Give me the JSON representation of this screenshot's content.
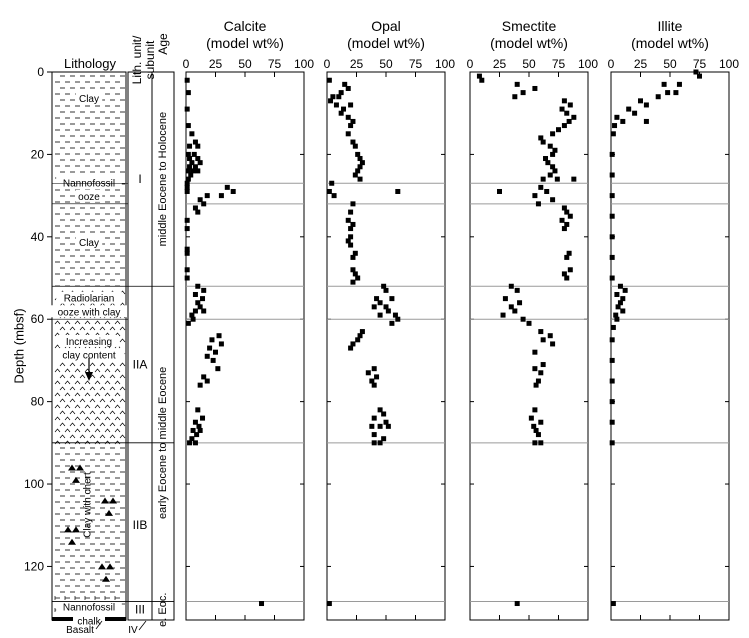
{
  "figure": {
    "depth_axis": {
      "label": "Depth (mbsf)",
      "min": 0,
      "max": 133,
      "ticks": [
        0,
        20,
        40,
        60,
        80,
        100,
        120
      ]
    },
    "column_headers": {
      "lithology": "Lithology",
      "unit": [
        "Lith. unit/",
        "subunit"
      ],
      "age": "Age"
    },
    "lithology_labels": [
      {
        "text": "Clay",
        "depth": 7
      },
      {
        "text": "Nannofossil",
        "depth": 27.5
      },
      {
        "text": "ooze",
        "depth": 30.8
      },
      {
        "text": "Clay",
        "depth": 42
      },
      {
        "text": "Radiolarian",
        "depth": 55.5
      },
      {
        "text": "ooze with clay",
        "depth": 58.8
      },
      {
        "text": "Increasing",
        "depth": 66
      },
      {
        "text": "clay content",
        "depth": 69.3
      },
      {
        "text": "Nannofossil",
        "depth": 130.5
      },
      {
        "text": "chalk",
        "depth": 133.8
      }
    ],
    "lithology_vertical_label": "Clay with chert",
    "bottom_labels": {
      "basalt": "Basalt",
      "unit_iv": "IV"
    },
    "units": [
      {
        "label": "I",
        "depth": 26
      },
      {
        "label": "IIA",
        "depth": 71
      },
      {
        "label": "IIB",
        "depth": 110
      },
      {
        "label": "III",
        "depth": 130.5
      }
    ],
    "ages": [
      {
        "label": "middle Eocene to Holocene",
        "top": 0,
        "bottom": 52
      },
      {
        "label": "early Eocene to middle Eocene",
        "top": 52,
        "bottom": 128
      },
      {
        "label": "e. Eoc.",
        "top": 128,
        "bottom": 133
      }
    ],
    "boundaries": [
      27,
      32,
      52,
      60,
      90,
      128.5
    ]
  },
  "chart_data": {
    "type": "scatter",
    "y_axis": {
      "label": "Depth (mbsf)",
      "range": [
        0,
        133
      ],
      "inverted": true,
      "ticks": [
        0,
        20,
        40,
        60,
        80,
        100,
        120
      ]
    },
    "x_range": [
      0,
      100
    ],
    "x_ticks": [
      0,
      25,
      50,
      75,
      100
    ],
    "panels": [
      {
        "title": "Calcite",
        "subtitle": "(model wt%)",
        "points": [
          [
            1,
            2
          ],
          [
            2,
            5
          ],
          [
            1,
            9
          ],
          [
            2,
            13
          ],
          [
            5,
            15
          ],
          [
            8,
            17
          ],
          [
            3,
            18
          ],
          [
            10,
            18
          ],
          [
            2,
            20
          ],
          [
            7,
            20
          ],
          [
            3,
            21
          ],
          [
            10,
            21
          ],
          [
            5,
            22
          ],
          [
            12,
            22
          ],
          [
            3,
            23
          ],
          [
            8,
            23
          ],
          [
            2,
            24
          ],
          [
            6,
            24
          ],
          [
            10,
            24
          ],
          [
            4,
            25
          ],
          [
            2,
            26
          ],
          [
            1,
            27
          ],
          [
            1,
            28
          ],
          [
            1,
            29
          ],
          [
            35,
            28
          ],
          [
            40,
            29
          ],
          [
            30,
            30
          ],
          [
            18,
            30
          ],
          [
            12,
            31
          ],
          [
            15,
            32
          ],
          [
            8,
            33
          ],
          [
            10,
            34
          ],
          [
            1,
            36
          ],
          [
            1,
            38
          ],
          [
            1,
            43
          ],
          [
            1,
            44
          ],
          [
            1,
            48
          ],
          [
            1,
            50
          ],
          [
            10,
            52
          ],
          [
            15,
            53
          ],
          [
            8,
            54
          ],
          [
            14,
            55
          ],
          [
            10,
            56
          ],
          [
            12,
            57
          ],
          [
            8,
            58
          ],
          [
            15,
            58
          ],
          [
            5,
            59
          ],
          [
            6,
            60
          ],
          [
            2,
            61
          ],
          [
            28,
            64
          ],
          [
            22,
            65
          ],
          [
            30,
            66
          ],
          [
            20,
            67
          ],
          [
            25,
            68
          ],
          [
            18,
            69
          ],
          [
            23,
            70
          ],
          [
            27,
            72
          ],
          [
            15,
            74
          ],
          [
            18,
            75
          ],
          [
            12,
            76
          ],
          [
            10,
            82
          ],
          [
            14,
            84
          ],
          [
            8,
            85
          ],
          [
            11,
            86
          ],
          [
            6,
            87
          ],
          [
            12,
            87
          ],
          [
            9,
            88
          ],
          [
            5,
            89
          ],
          [
            8,
            90
          ],
          [
            3,
            90
          ],
          [
            64,
            129
          ]
        ]
      },
      {
        "title": "Opal",
        "subtitle": "(model wt%)",
        "points": [
          [
            2,
            2
          ],
          [
            15,
            3
          ],
          [
            18,
            4
          ],
          [
            12,
            5
          ],
          [
            5,
            6
          ],
          [
            10,
            6
          ],
          [
            3,
            7
          ],
          [
            8,
            8
          ],
          [
            20,
            8
          ],
          [
            14,
            9
          ],
          [
            12,
            10
          ],
          [
            18,
            11
          ],
          [
            22,
            12
          ],
          [
            20,
            13
          ],
          [
            18,
            15
          ],
          [
            22,
            17
          ],
          [
            24,
            18
          ],
          [
            26,
            20
          ],
          [
            28,
            21
          ],
          [
            30,
            22
          ],
          [
            28,
            23
          ],
          [
            26,
            24
          ],
          [
            24,
            25
          ],
          [
            28,
            26
          ],
          [
            4,
            27
          ],
          [
            2,
            29
          ],
          [
            6,
            30
          ],
          [
            60,
            29
          ],
          [
            22,
            32
          ],
          [
            20,
            34
          ],
          [
            18,
            36
          ],
          [
            22,
            37
          ],
          [
            20,
            38
          ],
          [
            20,
            40
          ],
          [
            18,
            41
          ],
          [
            20,
            42
          ],
          [
            24,
            44
          ],
          [
            22,
            45
          ],
          [
            22,
            48
          ],
          [
            24,
            49
          ],
          [
            26,
            50
          ],
          [
            22,
            51
          ],
          [
            48,
            52
          ],
          [
            50,
            53
          ],
          [
            42,
            55
          ],
          [
            55,
            55
          ],
          [
            45,
            56
          ],
          [
            40,
            57
          ],
          [
            50,
            57
          ],
          [
            52,
            58
          ],
          [
            45,
            59
          ],
          [
            58,
            59
          ],
          [
            60,
            60
          ],
          [
            55,
            61
          ],
          [
            30,
            63
          ],
          [
            28,
            64
          ],
          [
            26,
            65
          ],
          [
            22,
            66
          ],
          [
            20,
            67
          ],
          [
            40,
            72
          ],
          [
            35,
            73
          ],
          [
            42,
            74
          ],
          [
            38,
            75
          ],
          [
            40,
            76
          ],
          [
            45,
            82
          ],
          [
            48,
            83
          ],
          [
            40,
            84
          ],
          [
            50,
            85
          ],
          [
            38,
            86
          ],
          [
            45,
            86
          ],
          [
            52,
            86
          ],
          [
            40,
            88
          ],
          [
            48,
            89
          ],
          [
            45,
            90
          ],
          [
            40,
            90
          ],
          [
            2,
            129
          ]
        ]
      },
      {
        "title": "Smectite",
        "subtitle": "(model wt%)",
        "points": [
          [
            8,
            1
          ],
          [
            10,
            2
          ],
          [
            40,
            3
          ],
          [
            55,
            4
          ],
          [
            45,
            5
          ],
          [
            38,
            6
          ],
          [
            80,
            7
          ],
          [
            85,
            8
          ],
          [
            78,
            9
          ],
          [
            82,
            10
          ],
          [
            88,
            11
          ],
          [
            84,
            12
          ],
          [
            80,
            13
          ],
          [
            75,
            14
          ],
          [
            70,
            15
          ],
          [
            60,
            16
          ],
          [
            62,
            17
          ],
          [
            68,
            18
          ],
          [
            72,
            19
          ],
          [
            70,
            20
          ],
          [
            64,
            21
          ],
          [
            66,
            22
          ],
          [
            70,
            23
          ],
          [
            72,
            24
          ],
          [
            68,
            25
          ],
          [
            62,
            26
          ],
          [
            74,
            26
          ],
          [
            88,
            26
          ],
          [
            60,
            28
          ],
          [
            65,
            29
          ],
          [
            25,
            29
          ],
          [
            55,
            30
          ],
          [
            70,
            31
          ],
          [
            58,
            32
          ],
          [
            80,
            33
          ],
          [
            82,
            34
          ],
          [
            85,
            35
          ],
          [
            78,
            36
          ],
          [
            82,
            37
          ],
          [
            80,
            38
          ],
          [
            84,
            44
          ],
          [
            82,
            45
          ],
          [
            85,
            48
          ],
          [
            80,
            49
          ],
          [
            82,
            50
          ],
          [
            35,
            52
          ],
          [
            40,
            53
          ],
          [
            30,
            55
          ],
          [
            42,
            56
          ],
          [
            35,
            57
          ],
          [
            38,
            58
          ],
          [
            28,
            59
          ],
          [
            45,
            60
          ],
          [
            50,
            61
          ],
          [
            60,
            63
          ],
          [
            68,
            64
          ],
          [
            62,
            65
          ],
          [
            70,
            66
          ],
          [
            55,
            68
          ],
          [
            62,
            71
          ],
          [
            55,
            72
          ],
          [
            60,
            73
          ],
          [
            58,
            75
          ],
          [
            56,
            76
          ],
          [
            55,
            82
          ],
          [
            52,
            84
          ],
          [
            60,
            85
          ],
          [
            54,
            86
          ],
          [
            56,
            87
          ],
          [
            58,
            88
          ],
          [
            55,
            90
          ],
          [
            60,
            90
          ],
          [
            40,
            129
          ]
        ]
      },
      {
        "title": "Illite",
        "subtitle": "(model wt%)",
        "points": [
          [
            75,
            1
          ],
          [
            72,
            0
          ],
          [
            45,
            3
          ],
          [
            58,
            3
          ],
          [
            48,
            5
          ],
          [
            55,
            5
          ],
          [
            40,
            6
          ],
          [
            25,
            7
          ],
          [
            30,
            8
          ],
          [
            15,
            9
          ],
          [
            20,
            10
          ],
          [
            5,
            11
          ],
          [
            10,
            12
          ],
          [
            3,
            13
          ],
          [
            30,
            12
          ],
          [
            2,
            15
          ],
          [
            1,
            20
          ],
          [
            1,
            25
          ],
          [
            1,
            30
          ],
          [
            1,
            35
          ],
          [
            1,
            40
          ],
          [
            1,
            45
          ],
          [
            1,
            50
          ],
          [
            8,
            52
          ],
          [
            12,
            53
          ],
          [
            5,
            54
          ],
          [
            10,
            55
          ],
          [
            8,
            56
          ],
          [
            6,
            57
          ],
          [
            10,
            58
          ],
          [
            4,
            59
          ],
          [
            5,
            60
          ],
          [
            2,
            62
          ],
          [
            1,
            65
          ],
          [
            1,
            70
          ],
          [
            1,
            75
          ],
          [
            1,
            80
          ],
          [
            1,
            85
          ],
          [
            1,
            90
          ],
          [
            2,
            129
          ]
        ]
      }
    ]
  }
}
